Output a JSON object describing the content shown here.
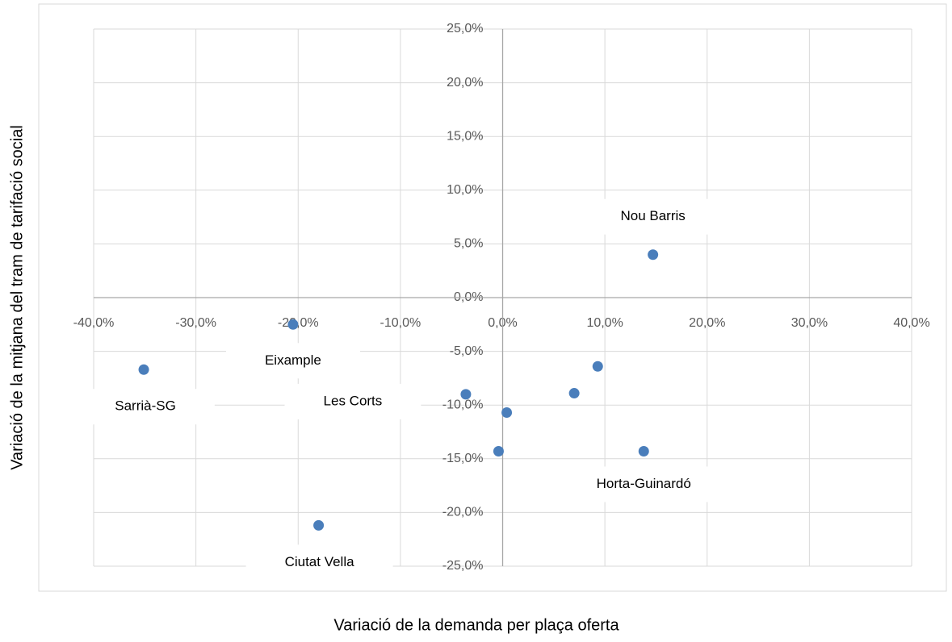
{
  "chart_data": {
    "type": "scatter",
    "x_label": "Variació de la demanda per plaça oferta",
    "y_label": "Variació de la mitjana del tram de tarifació social",
    "series": [
      {
        "color": "#4a7ebb",
        "x": [
          -20.5,
          -35.1,
          -3.6,
          -18.0,
          14.7,
          13.8,
          9.3,
          7.0,
          0.4,
          -0.4
        ],
        "values": [
          -2.5,
          -6.7,
          -9.0,
          -21.2,
          4.0,
          -14.3,
          -6.4,
          -8.9,
          -10.7,
          -14.3
        ],
        "point_labels": [
          "Eixample",
          "Sarrià-SG",
          "Les Corts",
          "Ciutat Vella",
          "Nou Barris",
          "Horta-Guinardó",
          null,
          null,
          null,
          null
        ]
      }
    ],
    "xlim": [
      -40,
      40
    ],
    "xticks": [
      {
        "value": -40,
        "label": "-40,0%"
      },
      {
        "value": -30,
        "label": "-30,0%"
      },
      {
        "value": -20,
        "label": "-20,0%"
      },
      {
        "value": -10,
        "label": "-10,0%"
      },
      {
        "value": 0,
        "label": "0,0%"
      },
      {
        "value": 10,
        "label": "10,0%"
      },
      {
        "value": 20,
        "label": "20,0%"
      },
      {
        "value": 30,
        "label": "30,0%"
      },
      {
        "value": 40,
        "label": "40,0%"
      }
    ],
    "ylim": [
      -25,
      25
    ],
    "yticks": [
      {
        "value": -25,
        "label": "-25,0%"
      },
      {
        "value": -20,
        "label": "-20,0%"
      },
      {
        "value": -15,
        "label": "-15,0%"
      },
      {
        "value": -10,
        "label": "-10,0%"
      },
      {
        "value": -5,
        "label": "-5,0%"
      },
      {
        "value": 0,
        "label": "0,0%"
      },
      {
        "value": 5,
        "label": "5,0%"
      },
      {
        "value": 10,
        "label": "10,0%"
      },
      {
        "value": 15,
        "label": "15,0%"
      },
      {
        "value": 20,
        "label": "20,0%"
      },
      {
        "value": 25,
        "label": "25,0%"
      }
    ],
    "grid": true
  }
}
